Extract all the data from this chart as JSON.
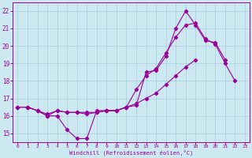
{
  "xlabel": "Windchill (Refroidissement éolien,°C)",
  "bg_color": "#cce8f0",
  "line_color": "#990099",
  "grid_color": "#aaccdd",
  "xlim": [
    -0.5,
    23.5
  ],
  "ylim": [
    14.5,
    22.5
  ],
  "yticks": [
    15,
    16,
    17,
    18,
    19,
    20,
    21,
    22
  ],
  "xticks": [
    0,
    1,
    2,
    3,
    4,
    5,
    6,
    7,
    8,
    9,
    10,
    11,
    12,
    13,
    14,
    15,
    16,
    17,
    18,
    19,
    20,
    21,
    22,
    23
  ],
  "line1_x": [
    0,
    1,
    2,
    3,
    4,
    5,
    6,
    7,
    8,
    9,
    10,
    11,
    12,
    13,
    14,
    15,
    16,
    17,
    18,
    19,
    20,
    21
  ],
  "line1_y": [
    16.5,
    16.5,
    16.3,
    16.0,
    16.0,
    15.2,
    14.7,
    14.7,
    16.3,
    16.3,
    16.3,
    16.5,
    16.6,
    18.5,
    18.6,
    19.4,
    21.0,
    22.0,
    21.2,
    20.3,
    20.2,
    19.2
  ],
  "line2_x": [
    0,
    1,
    2,
    3,
    4,
    5,
    6,
    7,
    8,
    9,
    10,
    11,
    12,
    13,
    14,
    15,
    16,
    17,
    18
  ],
  "line2_y": [
    16.5,
    16.5,
    16.3,
    16.1,
    16.3,
    16.2,
    16.2,
    16.2,
    16.2,
    16.3,
    16.3,
    16.5,
    16.7,
    17.0,
    17.3,
    17.8,
    18.3,
    18.8,
    19.2
  ],
  "line3_x": [
    0,
    1,
    2,
    3,
    4,
    5,
    6,
    7,
    8,
    9,
    10,
    11,
    12,
    13,
    14,
    15,
    16,
    17,
    18,
    19,
    20,
    21,
    22
  ],
  "line3_y": [
    16.5,
    16.5,
    16.3,
    16.0,
    16.3,
    16.2,
    16.2,
    16.1,
    16.2,
    16.3,
    16.3,
    16.5,
    17.5,
    18.3,
    18.7,
    19.6,
    20.5,
    21.2,
    21.3,
    20.4,
    20.1,
    19.0,
    18.0
  ]
}
